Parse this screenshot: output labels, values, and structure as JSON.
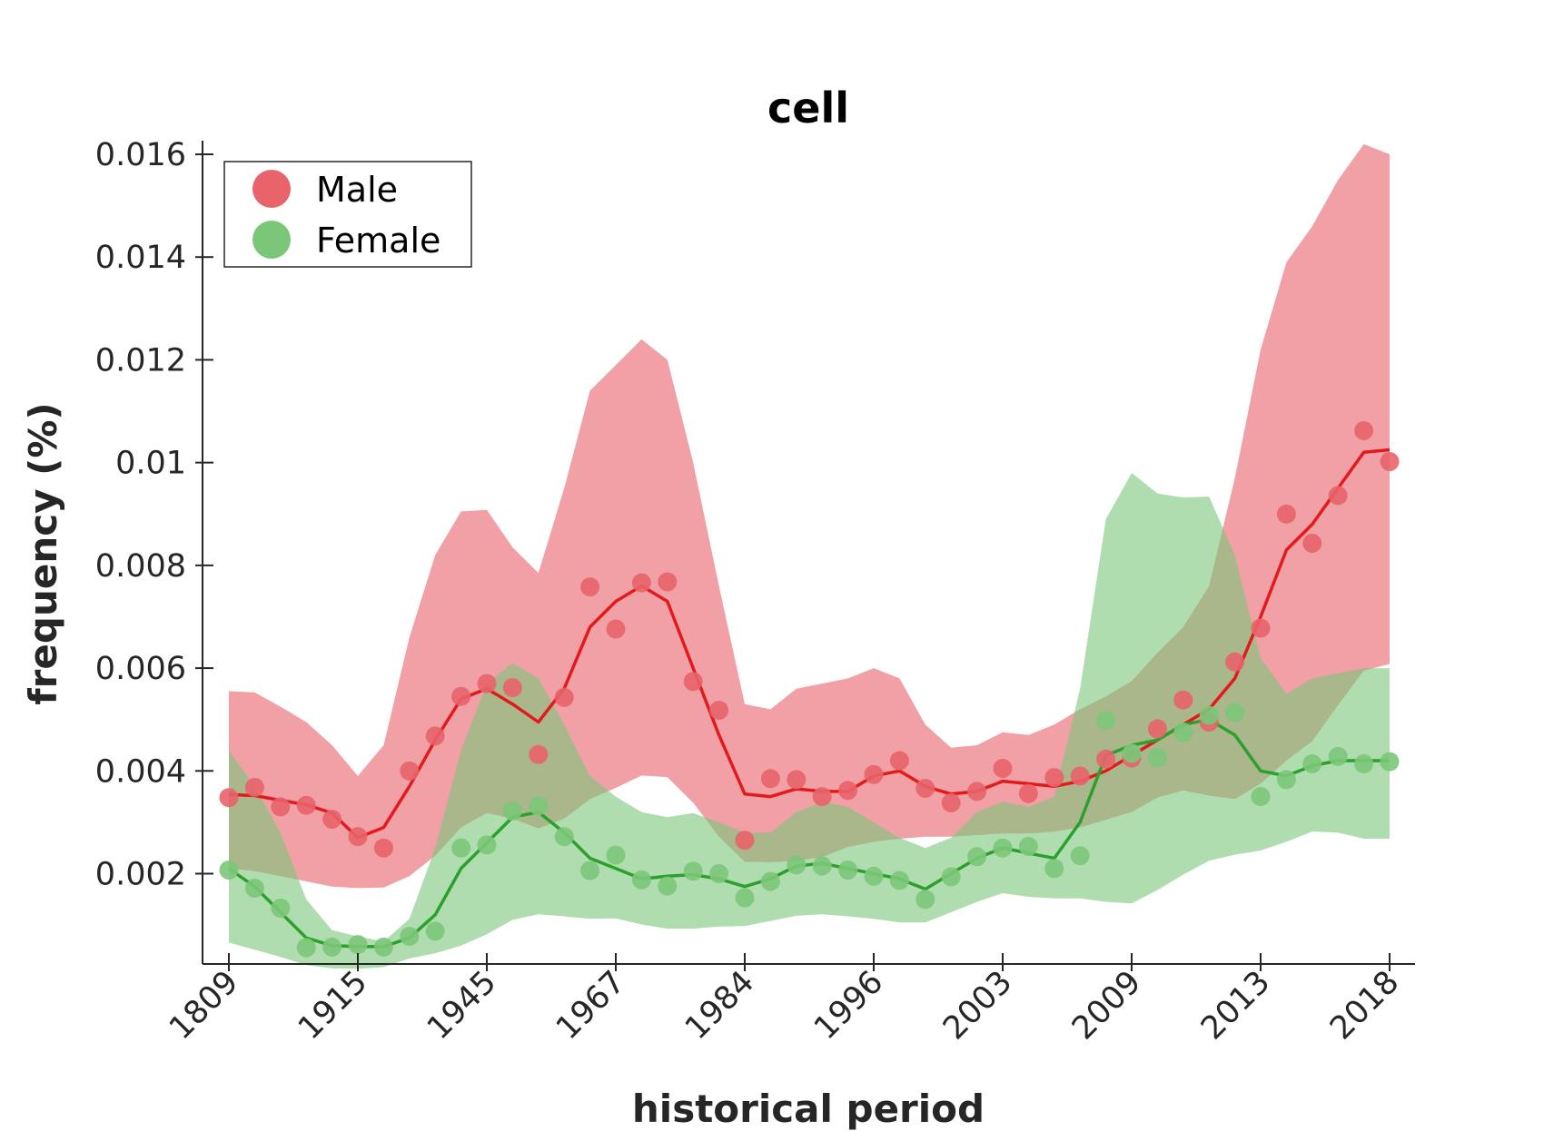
{
  "chart_data": {
    "type": "line",
    "title": "cell",
    "xlabel": "historical period",
    "ylabel": "frequency (%)",
    "x_tick_labels": [
      "1809",
      "1915",
      "1945",
      "1967",
      "1984",
      "1996",
      "2003",
      "2009",
      "2013",
      "2018"
    ],
    "y_tick_labels": [
      "0.002",
      "0.004",
      "0.006",
      "0.008",
      "0.01",
      "0.012",
      "0.014",
      "0.016"
    ],
    "y_ticks": [
      0.002,
      0.004,
      0.006,
      0.008,
      0.01,
      0.012,
      0.014,
      0.016
    ],
    "ylim": [
      0.0003,
      0.0162
    ],
    "grid": false,
    "legend_position": "top-left",
    "series": [
      {
        "name": "Male",
        "color": "#e31a1c",
        "band_color": "#e8636a",
        "points": [
          0.00348,
          0.00368,
          0.0033,
          0.00333,
          0.00306,
          0.00272,
          0.0025,
          0.004,
          0.00468,
          0.00545,
          0.0057,
          0.00562,
          0.00432,
          0.00543,
          0.00758,
          0.00676,
          0.00766,
          0.00768,
          0.00574,
          0.00518,
          0.00265,
          0.00385,
          0.00383,
          0.0035,
          0.00362,
          0.00393,
          0.0042,
          0.00366,
          0.00338,
          0.0036,
          0.00405,
          0.00356,
          0.00387,
          0.0039,
          0.00423,
          0.00425,
          0.00482,
          0.00538,
          0.00495,
          0.00612,
          0.00678,
          0.009,
          0.00843,
          0.00936,
          0.01062,
          0.01002
        ],
        "line": [
          0.00354,
          0.00352,
          0.00343,
          0.00334,
          0.00318,
          0.0027,
          0.0029,
          0.0037,
          0.0046,
          0.0054,
          0.0056,
          0.0053,
          0.00495,
          0.0056,
          0.0068,
          0.0073,
          0.0076,
          0.0073,
          0.006,
          0.0047,
          0.00355,
          0.0035,
          0.00365,
          0.0036,
          0.0036,
          0.0039,
          0.004,
          0.0037,
          0.00355,
          0.0036,
          0.0038,
          0.00375,
          0.0037,
          0.0038,
          0.004,
          0.0043,
          0.0046,
          0.0049,
          0.0052,
          0.0058,
          0.007,
          0.0083,
          0.0088,
          0.0095,
          0.0102,
          0.01025
        ],
        "upper": [
          0.00555,
          0.00553,
          0.00525,
          0.00495,
          0.0045,
          0.0039,
          0.0045,
          0.0066,
          0.0082,
          0.00905,
          0.00908,
          0.00835,
          0.00785,
          0.0095,
          0.0114,
          0.0119,
          0.0124,
          0.012,
          0.01,
          0.0076,
          0.0053,
          0.0052,
          0.0056,
          0.0057,
          0.0058,
          0.006,
          0.0058,
          0.0049,
          0.00445,
          0.0045,
          0.00475,
          0.0047,
          0.0049,
          0.0052,
          0.00545,
          0.00575,
          0.0063,
          0.0068,
          0.0076,
          0.0097,
          0.0122,
          0.0139,
          0.0146,
          0.0155,
          0.0162,
          0.016
        ],
        "lower": [
          0.0021,
          0.00205,
          0.00195,
          0.00185,
          0.00175,
          0.00172,
          0.00173,
          0.00195,
          0.00235,
          0.0029,
          0.00318,
          0.00307,
          0.00288,
          0.00307,
          0.00345,
          0.00367,
          0.00391,
          0.00388,
          0.00338,
          0.00272,
          0.00223,
          0.00222,
          0.00225,
          0.00232,
          0.00252,
          0.00262,
          0.00268,
          0.00272,
          0.00272,
          0.00275,
          0.00278,
          0.00278,
          0.00282,
          0.0029,
          0.00305,
          0.0032,
          0.00348,
          0.00362,
          0.00352,
          0.00345,
          0.00375,
          0.0042,
          0.00458,
          0.00528,
          0.00595,
          0.00608
        ]
      },
      {
        "name": "Female",
        "color": "#2ca02c",
        "band_color": "#7bc779",
        "points": [
          0.00207,
          0.00172,
          0.00133,
          0.00056,
          0.00057,
          0.00062,
          0.00057,
          0.00078,
          0.00088,
          0.0025,
          0.00256,
          0.00322,
          0.00332,
          0.00272,
          0.00206,
          0.00236,
          0.00188,
          0.00176,
          0.00205,
          0.002,
          0.00153,
          0.00185,
          0.00217,
          0.00215,
          0.00207,
          0.00195,
          0.00187,
          0.0015,
          0.00194,
          0.00233,
          0.0025,
          0.00253,
          0.0021,
          0.00235,
          0.00498,
          0.00434,
          0.00426,
          0.00475,
          0.00508,
          0.00513,
          0.0035,
          0.00383,
          0.00414,
          0.00428,
          0.00414,
          0.00418
        ],
        "line": [
          0.0021,
          0.00175,
          0.00125,
          0.00075,
          0.0006,
          0.00058,
          0.00058,
          0.00075,
          0.0012,
          0.0021,
          0.0026,
          0.0031,
          0.0032,
          0.0028,
          0.0023,
          0.0021,
          0.0019,
          0.00195,
          0.00198,
          0.0019,
          0.00175,
          0.0019,
          0.00215,
          0.0022,
          0.0021,
          0.002,
          0.0019,
          0.0017,
          0.002,
          0.0023,
          0.0025,
          0.0024,
          0.0023,
          0.003,
          0.0043,
          0.0045,
          0.0046,
          0.0049,
          0.005,
          0.0047,
          0.004,
          0.0039,
          0.0041,
          0.0042,
          0.0042,
          0.0042
        ],
        "upper": [
          0.0044,
          0.0037,
          0.0028,
          0.0015,
          0.0009,
          0.00078,
          0.00068,
          0.00112,
          0.0025,
          0.0044,
          0.0057,
          0.0061,
          0.0058,
          0.0049,
          0.0039,
          0.0035,
          0.0032,
          0.0031,
          0.00318,
          0.003,
          0.0028,
          0.0028,
          0.0032,
          0.0034,
          0.0033,
          0.003,
          0.0027,
          0.0025,
          0.0027,
          0.0032,
          0.0034,
          0.0033,
          0.0035,
          0.0056,
          0.0089,
          0.0098,
          0.0094,
          0.00932,
          0.00934,
          0.0082,
          0.0062,
          0.0055,
          0.0058,
          0.0059,
          0.006,
          0.006
        ],
        "lower": [
          0.00066,
          0.00052,
          0.00038,
          0.00022,
          0.00016,
          0.00015,
          0.00018,
          0.00035,
          0.00045,
          0.0006,
          0.00082,
          0.0011,
          0.00121,
          0.00117,
          0.00112,
          0.00113,
          0.00101,
          0.00093,
          0.00093,
          0.00097,
          0.00098,
          0.00108,
          0.00118,
          0.00121,
          0.00117,
          0.00112,
          0.00105,
          0.00105,
          0.00125,
          0.00145,
          0.00162,
          0.00155,
          0.00152,
          0.00152,
          0.00145,
          0.00142,
          0.00168,
          0.00198,
          0.00225,
          0.00237,
          0.00245,
          0.00262,
          0.00282,
          0.0028,
          0.00268,
          0.00268
        ]
      }
    ]
  }
}
